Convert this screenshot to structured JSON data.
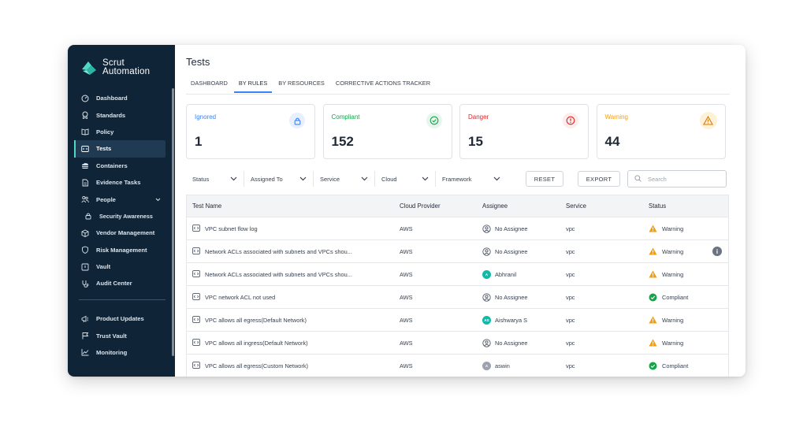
{
  "brand": {
    "line1": "Scrut",
    "line2": "Automation",
    "accent": "#4dd9c6"
  },
  "sidebar": {
    "items": [
      {
        "label": "Dashboard",
        "icon": "dashboard-gauge-icon"
      },
      {
        "label": "Standards",
        "icon": "award-icon"
      },
      {
        "label": "Policy",
        "icon": "book-icon"
      },
      {
        "label": "Tests",
        "icon": "code-window-icon"
      },
      {
        "label": "Containers",
        "icon": "cloud-stack-icon"
      },
      {
        "label": "Evidence Tasks",
        "icon": "document-icon"
      },
      {
        "label": "People",
        "icon": "people-icon"
      },
      {
        "label": "Security Awareness",
        "icon": "lock-icon"
      },
      {
        "label": "Vendor Management",
        "icon": "cube-icon"
      },
      {
        "label": "Risk Management",
        "icon": "shield-icon"
      },
      {
        "label": "Vault",
        "icon": "vault-icon"
      },
      {
        "label": "Audit Center",
        "icon": "stethoscope-icon"
      }
    ],
    "items2": [
      {
        "label": "Product Updates",
        "icon": "megaphone-icon"
      },
      {
        "label": "Trust Vault",
        "icon": "flag-icon"
      },
      {
        "label": "Monitoring",
        "icon": "chart-line-icon"
      }
    ]
  },
  "header": {
    "title": "Tests"
  },
  "tabs": [
    "DASHBOARD",
    "BY RULES",
    "BY RESOURCES",
    "CORRECTIVE ACTIONS TRACKER"
  ],
  "cards": [
    {
      "label": "Ignored",
      "value": "1",
      "color": "#3b82f6"
    },
    {
      "label": "Compliant",
      "value": "152",
      "color": "#16a34a"
    },
    {
      "label": "Danger",
      "value": "15",
      "color": "#dc2626"
    },
    {
      "label": "Warning",
      "value": "44",
      "color": "#f59e0b"
    }
  ],
  "filters": [
    "Status",
    "Assigned To",
    "Service",
    "Cloud",
    "Framework"
  ],
  "buttons": {
    "reset": "RESET",
    "export": "EXPORT"
  },
  "search": {
    "placeholder": "Search"
  },
  "table": {
    "headers": [
      "Test Name",
      "Cloud Provider",
      "Assignee",
      "Service",
      "Status"
    ],
    "rows": [
      {
        "name": "VPC subnet flow log",
        "provider": "AWS",
        "assignee": "No Assignee",
        "avatar": "",
        "service": "vpc",
        "status": "Warning"
      },
      {
        "name": "Network ACLs associated with subnets and VPCs shou...",
        "provider": "AWS",
        "assignee": "No Assignee",
        "avatar": "",
        "service": "vpc",
        "status": "Warning"
      },
      {
        "name": "Network ACLs associated with subnets and VPCs shou...",
        "provider": "AWS",
        "assignee": "Abhranil",
        "avatar": "A",
        "service": "vpc",
        "status": "Warning"
      },
      {
        "name": "VPC network ACL not used",
        "provider": "AWS",
        "assignee": "No Assignee",
        "avatar": "",
        "service": "vpc",
        "status": "Compliant"
      },
      {
        "name": "VPC allows all egress(Default Network)",
        "provider": "AWS",
        "assignee": "Aishwarya S",
        "avatar": "AS",
        "service": "vpc",
        "status": "Warning"
      },
      {
        "name": "VPC allows all ingress(Default Network)",
        "provider": "AWS",
        "assignee": "No Assignee",
        "avatar": "",
        "service": "vpc",
        "status": "Warning"
      },
      {
        "name": "VPC allows all egress(Custom Network)",
        "provider": "AWS",
        "assignee": "aswin",
        "avatar": "A",
        "service": "vpc",
        "status": "Compliant"
      }
    ]
  }
}
